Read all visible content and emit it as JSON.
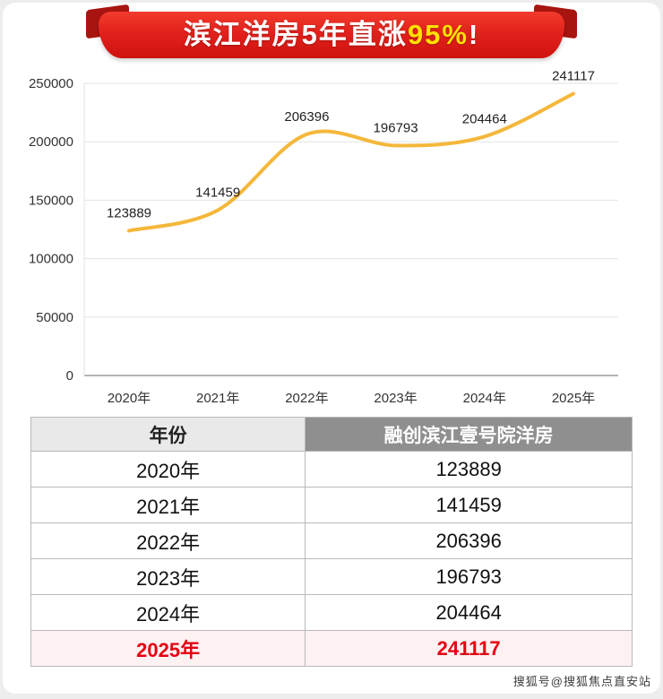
{
  "banner": {
    "text_main": "滨江洋房5年直涨",
    "text_highlight": "95%",
    "text_suffix": "!",
    "bg_color": "#e2211c",
    "tail_color": "#a81410",
    "highlight_color": "#ffe100"
  },
  "chart_data": {
    "type": "line",
    "title": "",
    "categories": [
      "2020年",
      "2021年",
      "2022年",
      "2023年",
      "2024年",
      "2025年"
    ],
    "values": [
      123889,
      141459,
      206396,
      196793,
      204464,
      241117
    ],
    "xlabel": "",
    "ylabel": "",
    "ylim": [
      0,
      250000
    ],
    "yticks": [
      0,
      50000,
      100000,
      150000,
      200000,
      250000
    ],
    "line_color": "#f4b73a",
    "grid": true,
    "legend_position": "none"
  },
  "table": {
    "headers": [
      "年份",
      "融创滨江壹号院洋房"
    ],
    "rows": [
      {
        "year": "2020年",
        "value": "123889",
        "highlight": false
      },
      {
        "year": "2021年",
        "value": "141459",
        "highlight": false
      },
      {
        "year": "2022年",
        "value": "206396",
        "highlight": false
      },
      {
        "year": "2023年",
        "value": "196793",
        "highlight": false
      },
      {
        "year": "2024年",
        "value": "204464",
        "highlight": false
      },
      {
        "year": "2025年",
        "value": "241117",
        "highlight": true
      }
    ],
    "highlight_text_color": "#e60012"
  },
  "watermark": {
    "text": "搜狐号@搜狐焦点直安站"
  }
}
